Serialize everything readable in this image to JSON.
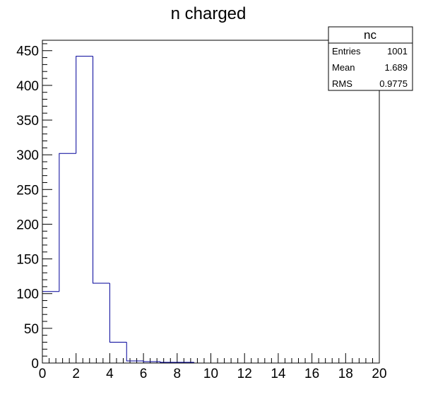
{
  "chart_data": {
    "type": "bar",
    "title": "n charged",
    "xlabel": "",
    "ylabel": "",
    "xlim": [
      0,
      20
    ],
    "ylim": [
      0,
      465
    ],
    "bin_width": 1,
    "bins": [
      0,
      1,
      2,
      3,
      4,
      5,
      6,
      7,
      8,
      9,
      10,
      11,
      12,
      13,
      14,
      15,
      16,
      17,
      18,
      19
    ],
    "values": [
      103,
      302,
      442,
      115,
      30,
      3,
      2,
      1,
      1,
      0,
      0,
      0,
      0,
      0,
      0,
      0,
      0,
      0,
      0,
      0
    ],
    "line_color": "#000099",
    "x_ticks": [
      "0",
      "2",
      "4",
      "6",
      "8",
      "10",
      "12",
      "14",
      "16",
      "18",
      "20"
    ],
    "x_tick_values": [
      0,
      2,
      4,
      6,
      8,
      10,
      12,
      14,
      16,
      18,
      20
    ],
    "y_ticks": [
      "0",
      "50",
      "100",
      "150",
      "200",
      "250",
      "300",
      "350",
      "400",
      "450"
    ],
    "y_tick_values": [
      0,
      50,
      100,
      150,
      200,
      250,
      300,
      350,
      400,
      450
    ],
    "stats": {
      "name": "nc",
      "entries_label": "Entries",
      "entries_value": "1001",
      "mean_label": "Mean",
      "mean_value": "1.689",
      "rms_label": "RMS",
      "rms_value": "0.9775"
    }
  }
}
